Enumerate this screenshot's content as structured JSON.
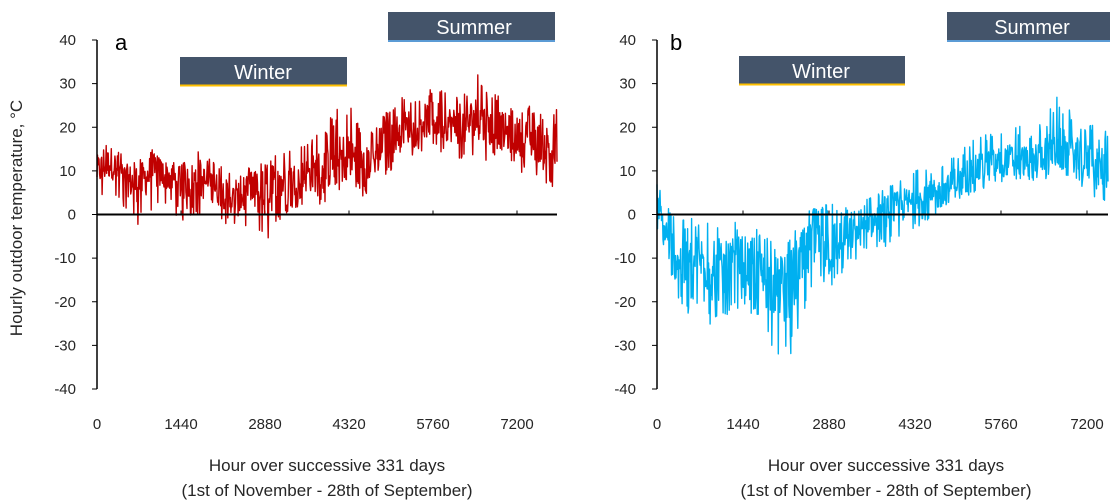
{
  "figure": {
    "ylabel": "Hourly outdoor temperature, °C",
    "xlabel_line1": "Hour over successive 331 days",
    "xlabel_line2": "(1st of November - 28th of September)",
    "colors": {
      "season_box": "#44546a",
      "winter_underline": "#ffc000",
      "summer_underline": "#5b9bd5",
      "axis": "#000000"
    }
  },
  "chart_data": [
    {
      "type": "line",
      "panel_label": "a",
      "xlabel": "Hour over successive 331 days (1st of November - 28th of September)",
      "ylabel": "Hourly outdoor temperature, °C",
      "xlim": [
        0,
        7944
      ],
      "ylim": [
        -40,
        40
      ],
      "xticks": [
        0,
        1440,
        2880,
        4320,
        5760,
        7200
      ],
      "yticks": [
        40,
        30,
        20,
        10,
        0,
        -10,
        -20,
        -30,
        -40
      ],
      "grid": false,
      "annotations": [
        {
          "text": "Winter",
          "x_range": [
            1440,
            4400
          ],
          "y": 33
        },
        {
          "text": "Summer",
          "x_range": [
            5100,
            8000
          ],
          "y": 42
        }
      ],
      "series": [
        {
          "color": "#c00000",
          "x": [
            0,
            240,
            480,
            720,
            960,
            1200,
            1440,
            1680,
            1920,
            2160,
            2400,
            2640,
            2880,
            3120,
            3360,
            3600,
            3840,
            4080,
            4320,
            4560,
            4800,
            5040,
            5280,
            5520,
            5760,
            6000,
            6240,
            6480,
            6720,
            6960,
            7200,
            7440,
            7680,
            7920
          ],
          "values": [
            10,
            12,
            8,
            7,
            10,
            9,
            7,
            8,
            7,
            5,
            3,
            5,
            4,
            7,
            8,
            9,
            10,
            12,
            14,
            11,
            13,
            18,
            20,
            21,
            22,
            21,
            20,
            22,
            20,
            19,
            18,
            17,
            16,
            15
          ],
          "min": [
            3,
            4,
            1,
            -3,
            0,
            2,
            -2,
            0,
            -1,
            -2,
            -4,
            -3,
            -7,
            -2,
            1,
            3,
            2,
            5,
            7,
            4,
            6,
            10,
            13,
            14,
            15,
            13,
            12,
            14,
            12,
            11,
            10,
            9,
            7,
            4
          ],
          "max": [
            16,
            17,
            14,
            13,
            15,
            14,
            12,
            15,
            13,
            11,
            9,
            11,
            12,
            14,
            15,
            17,
            20,
            24,
            27,
            19,
            20,
            26,
            27,
            28,
            30,
            28,
            27,
            33,
            28,
            27,
            26,
            25,
            24,
            28
          ]
        }
      ]
    },
    {
      "type": "line",
      "panel_label": "b",
      "xlabel": "Hour over successive 331 days (1st of November - 28th of September)",
      "ylabel": "",
      "xlim": [
        0,
        7944
      ],
      "ylim": [
        -40,
        40
      ],
      "xticks": [
        0,
        1440,
        2880,
        4320,
        5760,
        7200
      ],
      "yticks": [
        40,
        30,
        20,
        10,
        0,
        -10,
        -20,
        -30,
        -40
      ],
      "grid": false,
      "annotations": [
        {
          "text": "Winter",
          "x_range": [
            1440,
            4400
          ],
          "y": 33
        },
        {
          "text": "Summer",
          "x_range": [
            5100,
            8000
          ],
          "y": 42
        }
      ],
      "series": [
        {
          "color": "#00b0f0",
          "x": [
            0,
            240,
            480,
            720,
            960,
            1200,
            1440,
            1680,
            1920,
            2160,
            2400,
            2640,
            2880,
            3120,
            3360,
            3600,
            3840,
            4080,
            4320,
            4560,
            4800,
            5040,
            5280,
            5520,
            5760,
            6000,
            6240,
            6480,
            6720,
            6960,
            7200,
            7440,
            7680,
            7920
          ],
          "values": [
            2,
            -8,
            -12,
            -10,
            -14,
            -12,
            -10,
            -14,
            -16,
            -18,
            -12,
            -6,
            -8,
            -5,
            -4,
            -2,
            0,
            2,
            3,
            4,
            5,
            8,
            10,
            11,
            12,
            13,
            12,
            14,
            15,
            14,
            12,
            11,
            10,
            8
          ],
          "min": [
            -3,
            -15,
            -24,
            -20,
            -28,
            -24,
            -20,
            -26,
            -30,
            -35,
            -28,
            -15,
            -20,
            -14,
            -10,
            -8,
            -8,
            -6,
            -3,
            -2,
            0,
            2,
            5,
            6,
            7,
            8,
            7,
            8,
            9,
            8,
            5,
            3,
            0,
            2
          ],
          "max": [
            9,
            3,
            -1,
            0,
            -3,
            -2,
            0,
            -3,
            -6,
            -8,
            2,
            2,
            3,
            3,
            3,
            4,
            6,
            8,
            10,
            11,
            12,
            15,
            17,
            19,
            20,
            21,
            20,
            22,
            28,
            23,
            21,
            20,
            19,
            17
          ]
        }
      ]
    }
  ]
}
